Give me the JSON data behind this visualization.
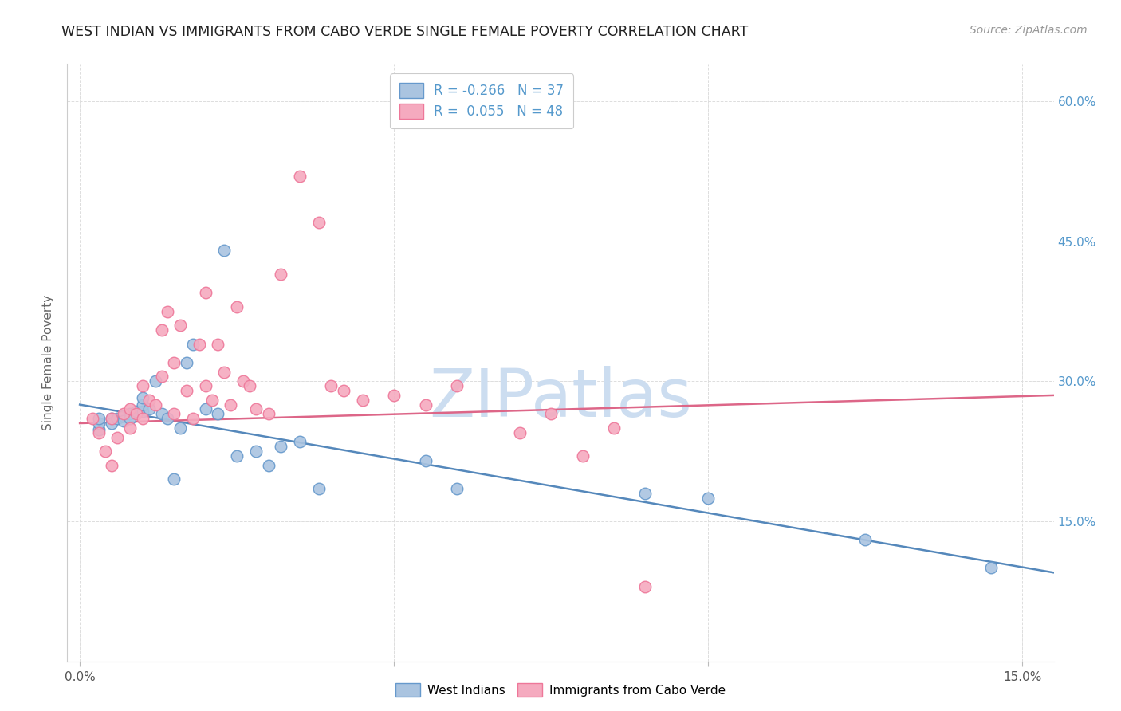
{
  "title": "WEST INDIAN VS IMMIGRANTS FROM CABO VERDE SINGLE FEMALE POVERTY CORRELATION CHART",
  "source": "Source: ZipAtlas.com",
  "ylabel": "Single Female Poverty",
  "yticks": [
    0.0,
    0.15,
    0.3,
    0.45,
    0.6
  ],
  "ytick_labels": [
    "",
    "15.0%",
    "30.0%",
    "45.0%",
    "60.0%"
  ],
  "xticks": [
    0.0,
    0.05,
    0.1,
    0.15
  ],
  "xtick_labels": [
    "0.0%",
    "",
    "",
    "15.0%"
  ],
  "xlim": [
    -0.002,
    0.155
  ],
  "ylim": [
    0.0,
    0.64
  ],
  "legend_line1": "R = -0.266   N = 37",
  "legend_line2": "R =  0.055   N = 48",
  "blue_color": "#aac4e0",
  "pink_color": "#f5aabf",
  "blue_edge_color": "#6699cc",
  "pink_edge_color": "#ee7799",
  "blue_line_color": "#5588bb",
  "pink_line_color": "#dd6688",
  "watermark_text": "ZIPatlas",
  "watermark_color": "#ccddf0",
  "title_color": "#222222",
  "source_color": "#999999",
  "ylabel_color": "#666666",
  "ytick_color": "#5599cc",
  "xtick_color": "#555555",
  "grid_color": "#dddddd",
  "blue_scatter_x": [
    0.003,
    0.003,
    0.003,
    0.005,
    0.005,
    0.006,
    0.007,
    0.007,
    0.008,
    0.008,
    0.009,
    0.01,
    0.01,
    0.01,
    0.011,
    0.012,
    0.013,
    0.014,
    0.015,
    0.016,
    0.017,
    0.018,
    0.02,
    0.022,
    0.023,
    0.025,
    0.028,
    0.03,
    0.032,
    0.035,
    0.038,
    0.055,
    0.06,
    0.09,
    0.1,
    0.125,
    0.145
  ],
  "blue_scatter_y": [
    0.248,
    0.255,
    0.26,
    0.26,
    0.255,
    0.26,
    0.263,
    0.258,
    0.265,
    0.26,
    0.268,
    0.268,
    0.275,
    0.282,
    0.27,
    0.3,
    0.265,
    0.26,
    0.195,
    0.25,
    0.32,
    0.34,
    0.27,
    0.265,
    0.44,
    0.22,
    0.225,
    0.21,
    0.23,
    0.235,
    0.185,
    0.215,
    0.185,
    0.18,
    0.175,
    0.13,
    0.1
  ],
  "pink_scatter_x": [
    0.002,
    0.003,
    0.004,
    0.005,
    0.005,
    0.006,
    0.007,
    0.008,
    0.008,
    0.009,
    0.01,
    0.01,
    0.011,
    0.012,
    0.013,
    0.013,
    0.014,
    0.015,
    0.015,
    0.016,
    0.017,
    0.018,
    0.019,
    0.02,
    0.02,
    0.021,
    0.022,
    0.023,
    0.024,
    0.025,
    0.026,
    0.027,
    0.028,
    0.03,
    0.032,
    0.035,
    0.038,
    0.04,
    0.042,
    0.045,
    0.05,
    0.055,
    0.06,
    0.07,
    0.075,
    0.08,
    0.085,
    0.09
  ],
  "pink_scatter_y": [
    0.26,
    0.245,
    0.225,
    0.26,
    0.21,
    0.24,
    0.265,
    0.27,
    0.25,
    0.265,
    0.295,
    0.26,
    0.28,
    0.275,
    0.355,
    0.305,
    0.375,
    0.32,
    0.265,
    0.36,
    0.29,
    0.26,
    0.34,
    0.395,
    0.295,
    0.28,
    0.34,
    0.31,
    0.275,
    0.38,
    0.3,
    0.295,
    0.27,
    0.265,
    0.415,
    0.52,
    0.47,
    0.295,
    0.29,
    0.28,
    0.285,
    0.275,
    0.295,
    0.245,
    0.265,
    0.22,
    0.25,
    0.08
  ],
  "blue_line_x": [
    0.0,
    0.155
  ],
  "blue_line_y": [
    0.275,
    0.095
  ],
  "pink_line_x": [
    0.0,
    0.155
  ],
  "pink_line_y": [
    0.255,
    0.285
  ]
}
